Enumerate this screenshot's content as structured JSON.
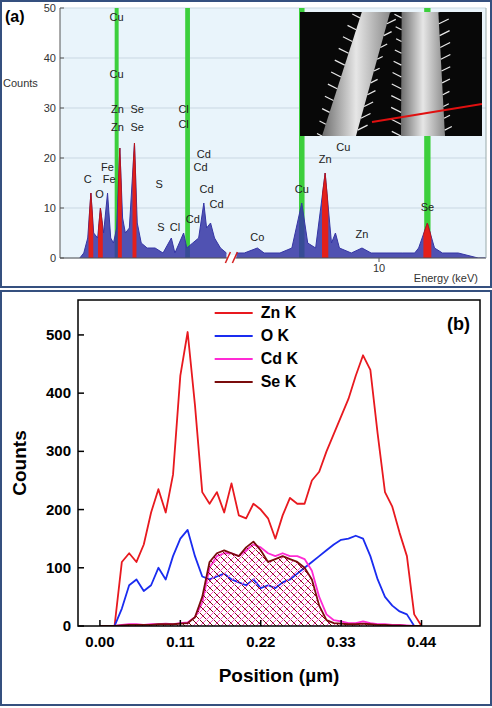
{
  "chart_data": [
    {
      "type": "area",
      "title": "(a)",
      "x_label": "Energy (keV)",
      "y_label": "Counts",
      "xlim": [
        -0.5,
        12.7
      ],
      "x_break": [
        3.7,
        6.4
      ],
      "ylim": [
        0,
        50
      ],
      "xticks": [
        10
      ],
      "yticks": [
        0,
        10,
        20,
        30,
        40,
        50
      ],
      "grid": true,
      "color": "#3535a5",
      "x": [
        0,
        0.1,
        0.2,
        0.28,
        0.35,
        0.45,
        0.52,
        0.6,
        0.7,
        0.78,
        0.85,
        0.93,
        1.01,
        1.08,
        1.15,
        1.25,
        1.38,
        1.45,
        1.55,
        1.7,
        1.9,
        2.1,
        2.31,
        2.4,
        2.62,
        2.7,
        2.85,
        3.0,
        3.13,
        3.2,
        3.3,
        3.4,
        3.55,
        3.7,
        6.4,
        6.6,
        6.93,
        7.1,
        7.5,
        7.8,
        8.05,
        8.2,
        8.4,
        8.64,
        8.8,
        8.9,
        9.0,
        9.3,
        9.57,
        9.8,
        10.2,
        10.6,
        10.9,
        11.0,
        11.22,
        11.4,
        11.6,
        12.0,
        12.5,
        12.7
      ],
      "values": [
        0,
        1,
        4,
        13,
        5,
        4,
        10,
        5,
        13,
        4,
        3,
        6,
        22,
        8,
        5,
        6,
        23,
        7,
        3,
        2,
        2,
        1,
        4,
        1,
        5,
        2,
        3,
        4,
        11,
        6,
        7,
        4,
        2,
        1,
        1,
        1,
        2,
        1,
        1,
        2,
        11,
        3,
        2,
        17,
        3,
        5,
        2,
        1,
        2,
        1,
        1,
        1,
        1,
        2,
        7,
        2,
        1,
        1,
        0,
        0
      ],
      "highlight_ranges": [
        [
          0.22,
          0.34
        ],
        [
          0.46,
          0.58
        ],
        [
          0.96,
          1.06
        ],
        [
          1.33,
          1.43
        ],
        [
          8.56,
          8.72
        ],
        [
          11.12,
          11.32
        ]
      ],
      "bands": [
        [
          0.88,
          0.98
        ],
        [
          2.66,
          2.78
        ],
        [
          7.98,
          8.12
        ],
        [
          11.14,
          11.3
        ]
      ],
      "annotations": [
        {
          "text": "Cu",
          "x": 0.93,
          "y": 47.5
        },
        {
          "text": "Cu",
          "x": 0.93,
          "y": 36
        },
        {
          "text": "Zn",
          "x": 0.95,
          "y": 29
        },
        {
          "text": "Se",
          "x": 1.45,
          "y": 29
        },
        {
          "text": "Zn",
          "x": 0.95,
          "y": 25.5
        },
        {
          "text": "Se",
          "x": 1.45,
          "y": 25.5
        },
        {
          "text": "C",
          "x": 0.2,
          "y": 15
        },
        {
          "text": "O",
          "x": 0.5,
          "y": 12
        },
        {
          "text": "Fe",
          "x": 0.7,
          "y": 17.5
        },
        {
          "text": "Fe",
          "x": 0.74,
          "y": 15
        },
        {
          "text": "S",
          "x": 2.0,
          "y": 14
        },
        {
          "text": "Cl",
          "x": 2.62,
          "y": 29
        },
        {
          "text": "Cl",
          "x": 2.62,
          "y": 26
        },
        {
          "text": "Cd",
          "x": 3.13,
          "y": 20
        },
        {
          "text": "Cd",
          "x": 3.05,
          "y": 17.5
        },
        {
          "text": "Cd",
          "x": 3.2,
          "y": 13
        },
        {
          "text": "Cd",
          "x": 3.45,
          "y": 10
        },
        {
          "text": "S",
          "x": 2.05,
          "y": 5.5
        },
        {
          "text": "Cl",
          "x": 2.4,
          "y": 5.5
        },
        {
          "text": "Cd",
          "x": 2.85,
          "y": 7
        },
        {
          "text": "Co",
          "x": 6.93,
          "y": 3.5
        },
        {
          "text": "Cu",
          "x": 8.05,
          "y": 13
        },
        {
          "text": "Zn",
          "x": 8.64,
          "y": 19
        },
        {
          "text": "Cu",
          "x": 9.1,
          "y": 21.5
        },
        {
          "text": "Zn",
          "x": 9.57,
          "y": 4
        },
        {
          "text": "Se",
          "x": 11.22,
          "y": 9.5
        }
      ]
    },
    {
      "type": "line",
      "title": "(b)",
      "x_label": "Position (µm)",
      "y_label": "Counts",
      "xlim": [
        -0.03,
        0.52
      ],
      "ylim": [
        0,
        560
      ],
      "xticks": [
        {
          "value": 0,
          "label": "0.00"
        },
        0.11,
        0.22,
        0.33,
        0.44
      ],
      "yticks": [
        0,
        100,
        200,
        300,
        400,
        500
      ],
      "grid": false,
      "legend": "top",
      "x": [
        0,
        0.01,
        0.02,
        0.03,
        0.04,
        0.05,
        0.06,
        0.07,
        0.08,
        0.09,
        0.1,
        0.11,
        0.12,
        0.13,
        0.14,
        0.15,
        0.16,
        0.17,
        0.18,
        0.19,
        0.2,
        0.21,
        0.22,
        0.23,
        0.24,
        0.25,
        0.26,
        0.27,
        0.28,
        0.29,
        0.3,
        0.31,
        0.32,
        0.33,
        0.34,
        0.35,
        0.36,
        0.37,
        0.38,
        0.39,
        0.4,
        0.41,
        0.42,
        0.43,
        0.44
      ],
      "series": [
        {
          "name": "Zn K",
          "color": "#e8191f",
          "type": "line",
          "values": [
            0,
            0,
            0,
            110,
            125,
            110,
            140,
            195,
            235,
            195,
            260,
            430,
            505,
            380,
            230,
            210,
            230,
            195,
            245,
            190,
            185,
            210,
            200,
            185,
            150,
            190,
            220,
            210,
            210,
            250,
            265,
            300,
            330,
            360,
            390,
            430,
            465,
            440,
            330,
            230,
            205,
            160,
            120,
            20,
            0
          ]
        },
        {
          "name": "O K",
          "color": "#1a2cf0",
          "type": "line",
          "values": [
            0,
            0,
            0,
            30,
            70,
            80,
            60,
            70,
            100,
            80,
            120,
            150,
            165,
            120,
            85,
            80,
            85,
            90,
            80,
            75,
            70,
            80,
            65,
            70,
            65,
            75,
            80,
            90,
            100,
            110,
            120,
            130,
            140,
            148,
            150,
            155,
            150,
            120,
            80,
            50,
            35,
            25,
            20,
            0,
            0
          ]
        },
        {
          "name": "Cd K",
          "color": "#ff2ad4",
          "type": "line",
          "values": [
            0,
            0,
            0,
            2,
            3,
            3,
            2,
            3,
            3,
            4,
            3,
            5,
            6,
            15,
            40,
            100,
            120,
            125,
            125,
            120,
            130,
            140,
            135,
            125,
            120,
            125,
            120,
            120,
            115,
            95,
            50,
            20,
            10,
            8,
            5,
            5,
            8,
            5,
            3,
            3,
            2,
            2,
            1,
            0,
            0
          ]
        },
        {
          "name": "Se K",
          "color": "#7a0c0c",
          "type": "area",
          "values": [
            0,
            0,
            0,
            1,
            2,
            2,
            2,
            2,
            3,
            3,
            3,
            4,
            5,
            15,
            50,
            110,
            125,
            130,
            125,
            120,
            135,
            145,
            130,
            110,
            115,
            120,
            115,
            110,
            100,
            80,
            35,
            10,
            5,
            4,
            3,
            3,
            4,
            3,
            2,
            2,
            1,
            1,
            0,
            0,
            0
          ]
        }
      ]
    }
  ]
}
